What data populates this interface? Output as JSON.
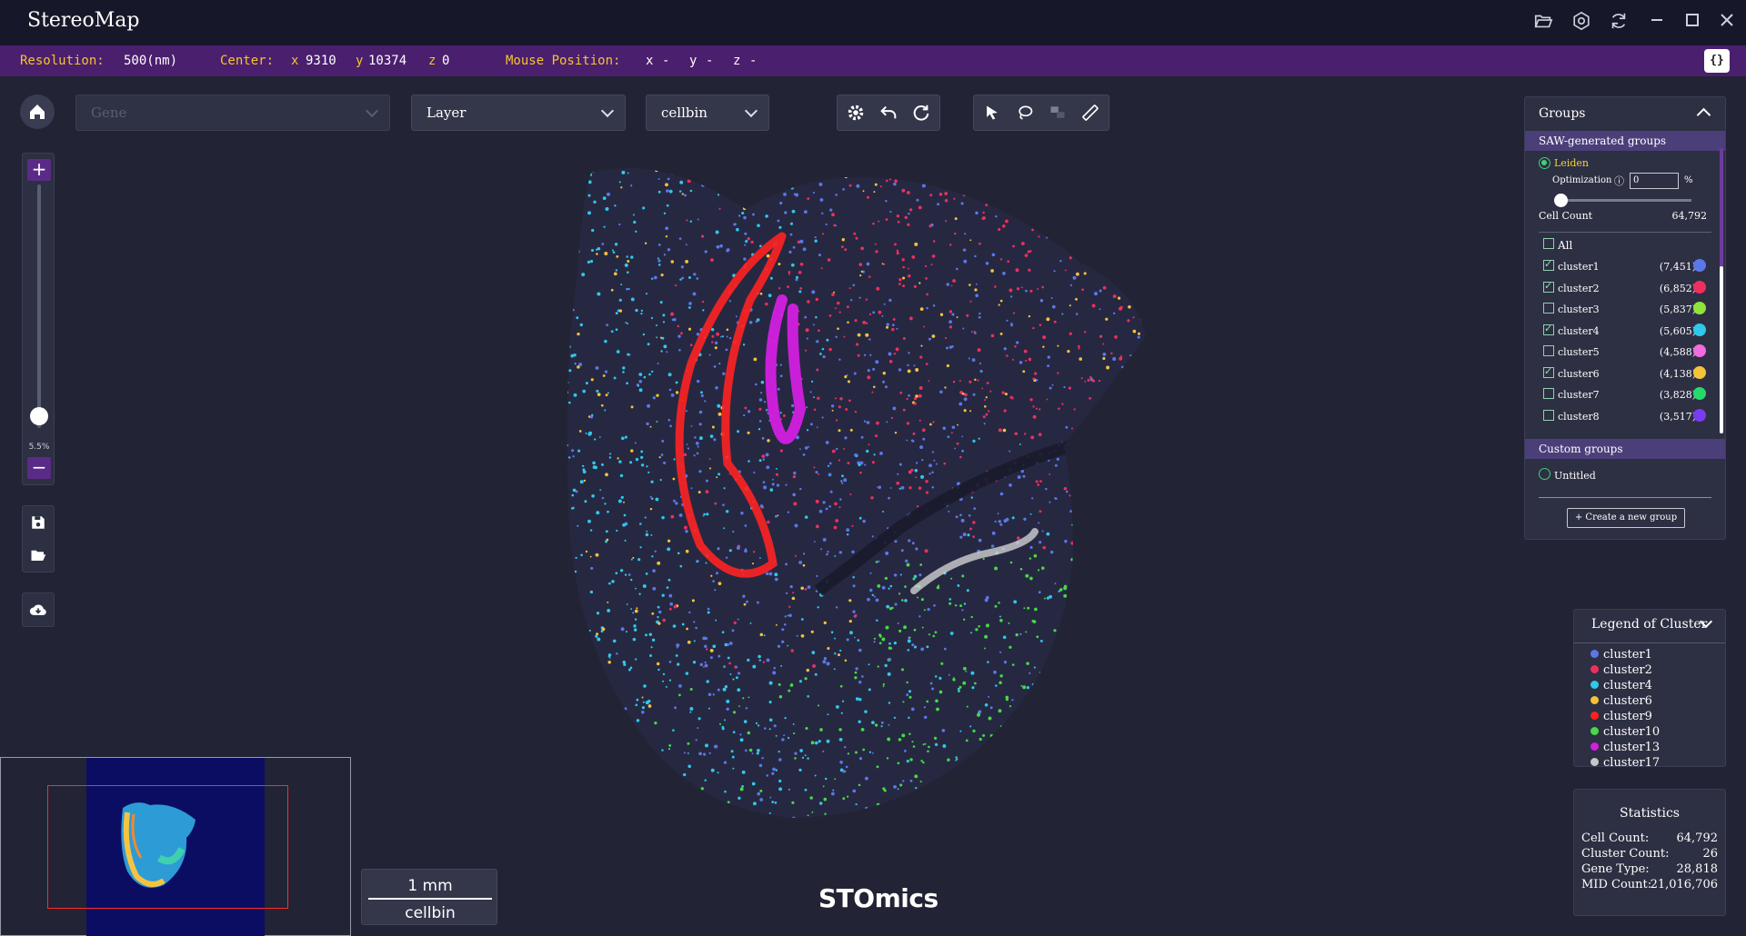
{
  "app": {
    "title": "StereoMap"
  },
  "titlebar": {
    "icons": [
      "folder-open-icon",
      "settings-icon",
      "refresh-icon",
      "minimize-icon",
      "maximize-icon",
      "close-icon"
    ]
  },
  "infobar": {
    "resolution_label": "Resolution:",
    "resolution_value": "500(nm)",
    "center_label": "Center:",
    "center_x_label": "x",
    "center_x": "9310",
    "center_y_label": "y",
    "center_y": "10374",
    "center_z_label": "z",
    "center_z": "0",
    "mouse_label": "Mouse Position:",
    "mouse_x_label": "x",
    "mouse_x": "-",
    "mouse_y_label": "y",
    "mouse_y": "-",
    "mouse_z_label": "z",
    "mouse_z": "-",
    "toggle_label": "{}"
  },
  "toolbar": {
    "gene_placeholder": "Gene",
    "layer_label": "Layer",
    "bin_label": "cellbin"
  },
  "zoom": {
    "percent": "5.5%",
    "level_fraction": 0.05
  },
  "scalebar": {
    "value": "1 mm",
    "mode": "cellbin"
  },
  "brand": "STOmics",
  "groups": {
    "title": "Groups",
    "saw_section": "SAW-generated groups",
    "method": "Leiden",
    "optimization_label": "Optimization",
    "optimization_value": "0",
    "optimization_unit": "%",
    "cell_count_label": "Cell Count",
    "cell_count_value": "64,792",
    "all_label": "All",
    "clusters": [
      {
        "name": "cluster1",
        "count": "(7,451)",
        "color": "#5b78e8",
        "checked": true
      },
      {
        "name": "cluster2",
        "count": "(6,852)",
        "color": "#ef2f5f",
        "checked": true
      },
      {
        "name": "cluster3",
        "count": "(5,837)",
        "color": "#8fe33a",
        "checked": false
      },
      {
        "name": "cluster4",
        "count": "(5,605)",
        "color": "#30c8ea",
        "checked": true
      },
      {
        "name": "cluster5",
        "count": "(4,588)",
        "color": "#f26bdf",
        "checked": false
      },
      {
        "name": "cluster6",
        "count": "(4,138)",
        "color": "#f4c33a",
        "checked": true
      },
      {
        "name": "cluster7",
        "count": "(3,828)",
        "color": "#27d86c",
        "checked": false
      },
      {
        "name": "cluster8",
        "count": "(3,517)",
        "color": "#7a3cf0",
        "checked": false
      }
    ],
    "custom_section": "Custom groups",
    "custom_item": "Untitled",
    "create_label": "+    Create a new group"
  },
  "legend": {
    "title": "Legend of Cluster",
    "items": [
      {
        "name": "cluster1",
        "color": "#5b78e8"
      },
      {
        "name": "cluster2",
        "color": "#ef2f5f"
      },
      {
        "name": "cluster4",
        "color": "#30c8ea"
      },
      {
        "name": "cluster6",
        "color": "#f4c33a"
      },
      {
        "name": "cluster9",
        "color": "#ff2020"
      },
      {
        "name": "cluster10",
        "color": "#49d846"
      },
      {
        "name": "cluster13",
        "color": "#d21fe0"
      },
      {
        "name": "cluster17",
        "color": "#c8c8c8"
      }
    ]
  },
  "statistics": {
    "title": "Statistics",
    "rows": [
      {
        "label": "Cell Count:",
        "value": "64,792"
      },
      {
        "label": "Cluster Count:",
        "value": "26"
      },
      {
        "label": "Gene Type:",
        "value": "28,818"
      },
      {
        "label": "MID Count:",
        "value": "21,016,706"
      }
    ]
  }
}
